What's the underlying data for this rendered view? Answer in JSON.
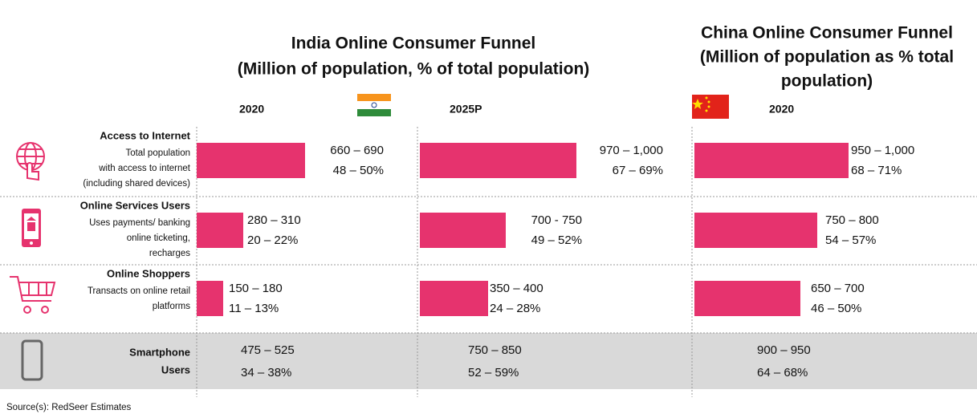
{
  "header": {
    "india_title": [
      "India Online Consumer Funnel",
      "(Million of population, % of total population)"
    ],
    "china_title": [
      "China Online Consumer Funnel",
      "(Million of population as % total",
      "population)"
    ],
    "columns": [
      "2020",
      "2025P",
      "2020"
    ]
  },
  "rows": [
    {
      "label": "Access to Internet",
      "description": [
        "Total population",
        "with access to internet",
        "(including shared devices)"
      ],
      "cells": [
        {
          "range": "660 – 690",
          "pct": "48 – 50%"
        },
        {
          "range": "970 – 1,000",
          "pct": "67 – 69%"
        },
        {
          "range": "950 – 1,000",
          "pct": "68 – 71%"
        }
      ]
    },
    {
      "label": "Online Services Users",
      "description": [
        "Uses payments/ banking",
        "online ticketing,",
        "recharges"
      ],
      "cells": [
        {
          "range": "280 – 310",
          "pct": "20 – 22%"
        },
        {
          "range": "700 - 750",
          "pct": "49 – 52%"
        },
        {
          "range": "750 – 800",
          "pct": "54 – 57%"
        }
      ]
    },
    {
      "label": "Online Shoppers",
      "description": [
        "Transacts on online retail",
        "platforms"
      ],
      "cells": [
        {
          "range": "150 – 180",
          "pct": "11 – 13%"
        },
        {
          "range": "350 – 400",
          "pct": "24 – 28%"
        },
        {
          "range": "650 – 700",
          "pct": "46 – 50%"
        }
      ]
    },
    {
      "label": [
        "Smartphone",
        "Users"
      ],
      "cells": [
        {
          "range": "475 – 525",
          "pct": "34 – 38%"
        },
        {
          "range": "750 – 850",
          "pct": "52 – 59%"
        },
        {
          "range": "900 – 950",
          "pct": "64 – 68%"
        }
      ]
    }
  ],
  "source": "Source(s): RedSeer Estimates"
}
